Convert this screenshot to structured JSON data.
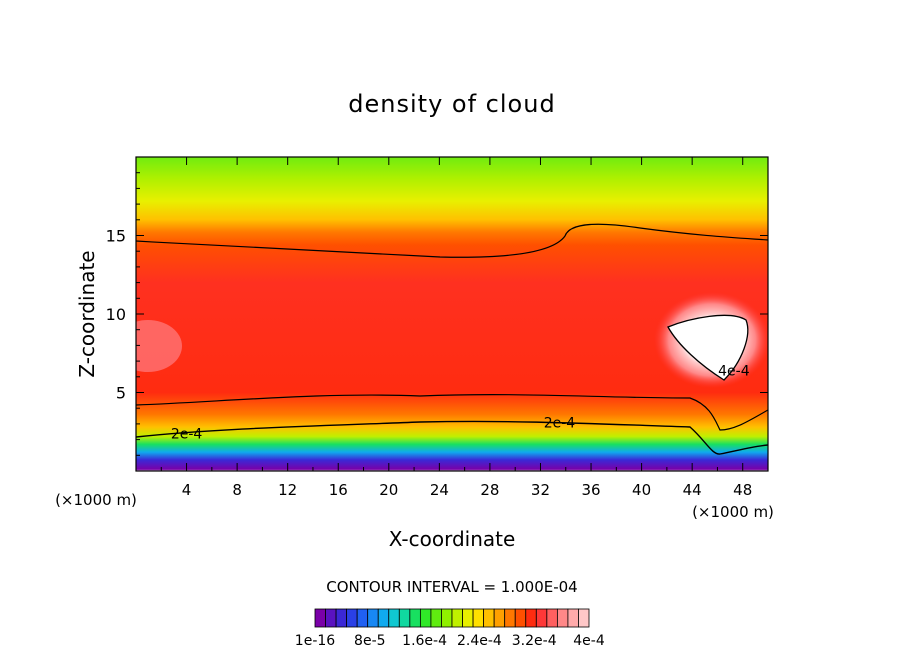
{
  "chart_data": {
    "type": "heatmap",
    "title": "density of cloud",
    "xlabel": "X-coordinate",
    "ylabel": "Z-coordinate",
    "x_unit_left": "(×1000 m)",
    "x_unit_right": "(×1000 m)",
    "xlim": [
      0,
      50
    ],
    "ylim": [
      0,
      20
    ],
    "x_ticks": [
      4,
      8,
      12,
      16,
      20,
      24,
      28,
      32,
      36,
      40,
      44,
      48
    ],
    "y_ticks": [
      5,
      10,
      15
    ],
    "contour_interval_text": "CONTOUR INTERVAL = 1.000E-04",
    "contour_labels": [
      {
        "text": "2e-4",
        "x": 4,
        "y": 2.4
      },
      {
        "text": "2e-4",
        "x": 33.5,
        "y": 3.1
      },
      {
        "text": "4e-4",
        "x": 47.3,
        "y": 6.4
      }
    ],
    "colorbar": {
      "tick_labels": [
        "1e-16",
        "8e-5",
        "1.6e-4",
        "2.4e-4",
        "3.2e-4",
        "4e-4"
      ],
      "colors": [
        "#7a00a8",
        "#5a12c0",
        "#3b28d6",
        "#2a40e6",
        "#2060f2",
        "#1888f4",
        "#10aaee",
        "#10c8d0",
        "#10d8a0",
        "#18e060",
        "#30e828",
        "#60ec10",
        "#90f000",
        "#c0f000",
        "#e8f000",
        "#ffe000",
        "#ffc000",
        "#ffa000",
        "#ff7800",
        "#ff5000",
        "#ff2c10",
        "#ff3838",
        "#ff6060",
        "#ff8888",
        "#ffaaaa",
        "#ffc8c8"
      ]
    },
    "z_bands": [
      {
        "z": 0.4,
        "value": 1e-16
      },
      {
        "z": 1.0,
        "value": 4e-05
      },
      {
        "z": 1.6,
        "value": 0.00012
      },
      {
        "z": 2.4,
        "value": 0.0002
      },
      {
        "z": 3.2,
        "value": 0.00024
      },
      {
        "z": 4.2,
        "value": 0.00028
      },
      {
        "z": 5.5,
        "value": 0.0003
      },
      {
        "z": 8.0,
        "value": 0.00032
      },
      {
        "z": 12.0,
        "value": 0.00032
      },
      {
        "z": 14.5,
        "value": 0.0003
      },
      {
        "z": 16.0,
        "value": 0.00024
      },
      {
        "z": 17.5,
        "value": 0.00016
      },
      {
        "z": 19.5,
        "value": 0.0001
      }
    ],
    "max_region": {
      "x_center": 45.5,
      "z_center": 8.4,
      "value": 0.00042
    }
  }
}
